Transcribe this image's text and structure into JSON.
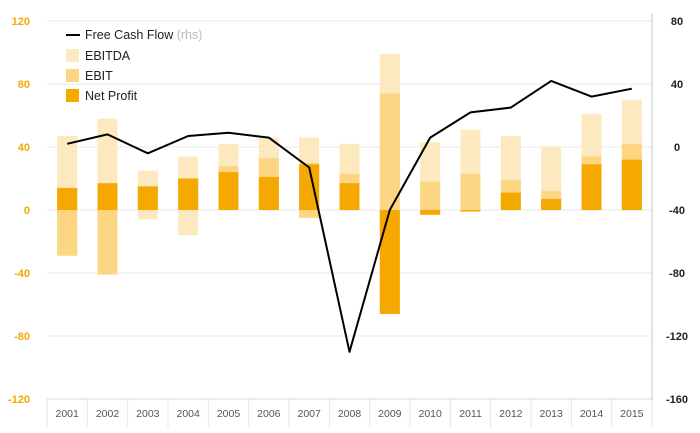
{
  "chart_data": {
    "type": "bar",
    "categories": [
      "2001",
      "2002",
      "2003",
      "2004",
      "2005",
      "2006",
      "2007",
      "2008",
      "2009",
      "2010",
      "2011",
      "2012",
      "2013",
      "2014",
      "2015"
    ],
    "series": [
      {
        "name": "EBITDA",
        "kind": "bar",
        "axis": "left",
        "color": "#fde9bf",
        "values": [
          [
            -29,
            47
          ],
          [
            -41,
            58
          ],
          [
            -6,
            25
          ],
          [
            -16,
            34
          ],
          [
            0,
            42
          ],
          [
            0,
            46
          ],
          [
            -5,
            46
          ],
          [
            0,
            42
          ],
          [
            0,
            99
          ],
          [
            0,
            43
          ],
          [
            0,
            51
          ],
          [
            0,
            47
          ],
          [
            0,
            40
          ],
          [
            0,
            61
          ],
          [
            0,
            70
          ]
        ]
      },
      {
        "name": "EBIT",
        "kind": "bar",
        "axis": "left",
        "color": "#fdd684",
        "values": [
          [
            -29,
            14
          ],
          [
            -41,
            17
          ],
          [
            0,
            15
          ],
          [
            0,
            20
          ],
          [
            0,
            28
          ],
          [
            0,
            33
          ],
          [
            -5,
            30
          ],
          [
            0,
            23
          ],
          [
            -64,
            74
          ],
          [
            -3,
            18
          ],
          [
            0,
            23
          ],
          [
            0,
            19
          ],
          [
            0,
            12
          ],
          [
            0,
            34
          ],
          [
            0,
            42
          ]
        ]
      },
      {
        "name": "Net Profit",
        "kind": "bar",
        "axis": "left",
        "color": "#f5a800",
        "values": [
          [
            0,
            14
          ],
          [
            0,
            17
          ],
          [
            0,
            15
          ],
          [
            0,
            20
          ],
          [
            0,
            24
          ],
          [
            0,
            21
          ],
          [
            0,
            29
          ],
          [
            0,
            17
          ],
          [
            -66,
            0
          ],
          [
            -3,
            0
          ],
          [
            -1,
            0
          ],
          [
            0,
            11
          ],
          [
            0,
            7
          ],
          [
            0,
            29
          ],
          [
            0,
            32
          ]
        ]
      },
      {
        "name": "Free Cash Flow",
        "note": "(rhs)",
        "kind": "line",
        "axis": "right",
        "color": "#000000",
        "values": [
          2,
          8,
          -4,
          7,
          9,
          6,
          -13,
          -130,
          -40,
          6,
          22,
          25,
          42,
          32,
          37
        ]
      }
    ],
    "left_axis": {
      "min": -120,
      "max": 120,
      "ticks": [
        120,
        80,
        40,
        0,
        -40,
        -80,
        -120
      ],
      "color": "#f5a800"
    },
    "right_axis": {
      "min": -160,
      "max": 80,
      "ticks": [
        80,
        40,
        0,
        -40,
        -80,
        -120,
        -160
      ],
      "color": "#222222"
    },
    "grid": true,
    "legend_position": "top-left"
  }
}
